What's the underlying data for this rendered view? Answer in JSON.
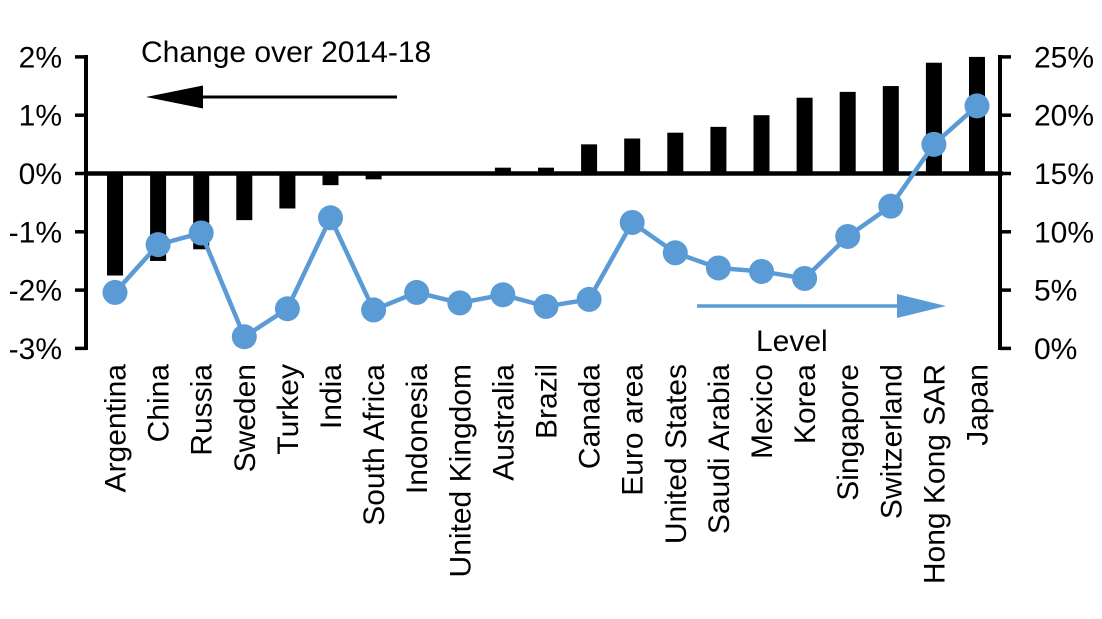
{
  "chart_data": {
    "type": "bar",
    "subtype": "combo-bar-line-dual-axis",
    "title": "",
    "annotations": {
      "change_label": "Change over 2014-18",
      "level_label": "Level"
    },
    "categories": [
      "Argentina",
      "China",
      "Russia",
      "Sweden",
      "Turkey",
      "India",
      "South Africa",
      "Indonesia",
      "United Kingdom",
      "Australia",
      "Brazil",
      "Canada",
      "Euro area",
      "United States",
      "Saudi Arabia",
      "Mexico",
      "Korea",
      "Singapore",
      "Switzerland",
      "Hong Kong SAR",
      "Japan"
    ],
    "series": [
      {
        "name": "Change over 2014-18",
        "type": "bar",
        "axis": "left",
        "color": "#000000",
        "unit": "%",
        "values": [
          -1.75,
          -1.5,
          -1.3,
          -0.8,
          -0.6,
          -0.2,
          -0.1,
          0.0,
          0.0,
          0.1,
          0.1,
          0.5,
          0.6,
          0.7,
          0.8,
          1.0,
          1.3,
          1.4,
          1.5,
          1.9,
          2.0
        ]
      },
      {
        "name": "Level",
        "type": "line",
        "axis": "right",
        "color": "#5B9BD5",
        "unit": "%",
        "values": [
          4.8,
          8.9,
          9.9,
          1.0,
          3.4,
          11.2,
          3.3,
          4.8,
          3.9,
          4.6,
          3.6,
          4.2,
          10.8,
          8.2,
          6.9,
          6.6,
          6.0,
          9.6,
          12.2,
          17.5,
          20.8
        ]
      }
    ],
    "left_axis": {
      "min": -3,
      "max": 2,
      "tick_labels": [
        "2%",
        "1%",
        "0%",
        "-1%",
        "-2%",
        "-3%"
      ]
    },
    "right_axis": {
      "min": 0,
      "max": 25,
      "tick_labels": [
        "25%",
        "20%",
        "15%",
        "10%",
        "5%",
        "0%"
      ]
    },
    "grid": false,
    "legend_position": "none (arrow annotations inside plot)"
  },
  "colors": {
    "bar": "#000000",
    "line": "#5B9BD5",
    "axis": "#000000",
    "text": "#000000",
    "background": "#FFFFFF"
  }
}
